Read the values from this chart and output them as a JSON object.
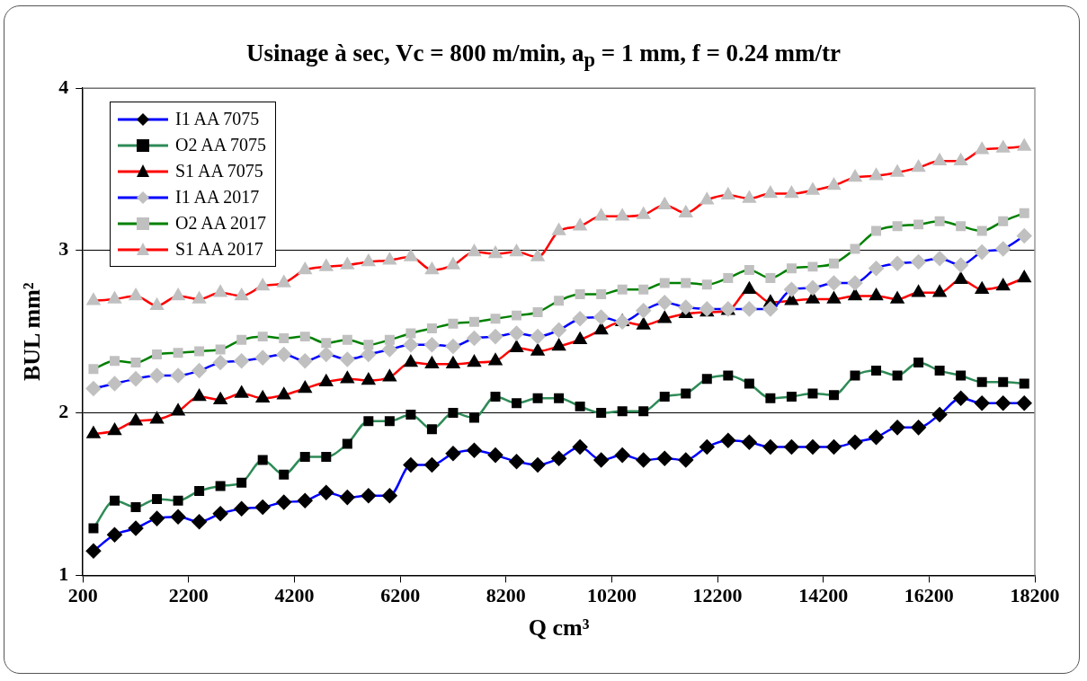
{
  "chart_data": {
    "type": "line",
    "title": "Usinage à sec, Vc = 800 m/min, a$_{p}$ = 1 mm, f = 0.24 mm/tr",
    "xlabel": "Q cm³",
    "ylabel": "BUL mm²",
    "x": [
      400,
      800,
      1200,
      1600,
      2000,
      2400,
      2800,
      3200,
      3600,
      4000,
      4400,
      4800,
      5200,
      5600,
      6000,
      6400,
      6800,
      7200,
      7600,
      8000,
      8400,
      8800,
      9200,
      9600,
      10000,
      10400,
      10800,
      11200,
      11600,
      12000,
      12400,
      12800,
      13200,
      13600,
      14000,
      14400,
      14800,
      15200,
      15600,
      16000,
      16400,
      16800,
      17200,
      17600,
      18000
    ],
    "series": [
      {
        "name": "I1 AA 7075",
        "color": "#0000ff",
        "marker": "diamond",
        "colors": [
          "#000000",
          "#000000",
          "#000000",
          "#000000",
          "#000000",
          "#000000",
          "#000000",
          "#000000",
          "#000000",
          "#000000",
          "#000000",
          "#000000",
          "#000000",
          "#000000",
          "#000000",
          "#000000",
          "#000000",
          "#000000",
          "#000000",
          "#000000",
          "#000000",
          "#000000",
          "#000000",
          "#000000",
          "#000000",
          "#000000",
          "#000000",
          "#000000",
          "#000000",
          "#000000",
          "#000000",
          "#000000",
          "#000000",
          "#000000",
          "#000000",
          "#000000",
          "#000000",
          "#000000",
          "#000000",
          "#000000",
          "#000000",
          "#000000",
          "#000000",
          "#000000",
          "#000000"
        ],
        "values": [
          1.15,
          1.25,
          1.29,
          1.35,
          1.36,
          1.33,
          1.38,
          1.41,
          1.42,
          1.45,
          1.46,
          1.51,
          1.48,
          1.49,
          1.49,
          1.68,
          1.68,
          1.75,
          1.77,
          1.74,
          1.7,
          1.68,
          1.72,
          1.79,
          1.71,
          1.74,
          1.71,
          1.72,
          1.71,
          1.79,
          1.83,
          1.82,
          1.79,
          1.79,
          1.79,
          1.79,
          1.82,
          1.85,
          1.91,
          1.91,
          1.99,
          2.09,
          2.06,
          2.06,
          2.06
        ]
      },
      {
        "name": "O2 AA 7075",
        "color": "#2e8b57",
        "marker": "square",
        "colors": [
          "#000000",
          "#000000",
          "#000000",
          "#000000",
          "#000000",
          "#000000",
          "#000000",
          "#000000",
          "#000000",
          "#000000",
          "#000000",
          "#000000",
          "#000000",
          "#000000",
          "#000000",
          "#000000",
          "#000000",
          "#000000",
          "#000000",
          "#000000",
          "#000000",
          "#000000",
          "#000000",
          "#000000",
          "#000000",
          "#000000",
          "#000000",
          "#000000",
          "#000000",
          "#000000",
          "#000000",
          "#000000",
          "#000000",
          "#000000",
          "#000000",
          "#000000",
          "#000000",
          "#000000",
          "#000000",
          "#000000",
          "#000000",
          "#000000",
          "#000000",
          "#000000",
          "#000000"
        ],
        "values": [
          1.29,
          1.46,
          1.42,
          1.47,
          1.46,
          1.52,
          1.55,
          1.57,
          1.71,
          1.62,
          1.73,
          1.73,
          1.81,
          1.95,
          1.95,
          1.99,
          1.9,
          2.0,
          1.97,
          2.1,
          2.06,
          2.09,
          2.09,
          2.04,
          2.0,
          2.01,
          2.01,
          2.1,
          2.12,
          2.21,
          2.23,
          2.18,
          2.09,
          2.1,
          2.12,
          2.11,
          2.23,
          2.26,
          2.23,
          2.31,
          2.26,
          2.23,
          2.19,
          2.19,
          2.18
        ]
      },
      {
        "name": "S1 AA 7075",
        "color": "#ff0000",
        "marker": "triangle",
        "colors": [
          "#000000",
          "#000000",
          "#000000",
          "#000000",
          "#000000",
          "#000000",
          "#000000",
          "#000000",
          "#000000",
          "#000000",
          "#000000",
          "#000000",
          "#000000",
          "#000000",
          "#000000",
          "#000000",
          "#000000",
          "#000000",
          "#000000",
          "#000000",
          "#000000",
          "#000000",
          "#000000",
          "#000000",
          "#000000",
          "#000000",
          "#000000",
          "#000000",
          "#000000",
          "#000000",
          "#000000",
          "#000000",
          "#000000",
          "#000000",
          "#000000",
          "#000000",
          "#000000",
          "#000000",
          "#000000",
          "#000000",
          "#000000",
          "#000000",
          "#000000",
          "#000000",
          "#000000"
        ],
        "values": [
          1.87,
          1.89,
          1.95,
          1.96,
          2.01,
          2.1,
          2.08,
          2.12,
          2.09,
          2.11,
          2.15,
          2.19,
          2.21,
          2.2,
          2.22,
          2.31,
          2.3,
          2.3,
          2.31,
          2.32,
          2.4,
          2.38,
          2.41,
          2.45,
          2.51,
          2.56,
          2.54,
          2.58,
          2.61,
          2.62,
          2.63,
          2.76,
          2.68,
          2.69,
          2.7,
          2.7,
          2.72,
          2.72,
          2.7,
          2.74,
          2.74,
          2.82,
          2.76,
          2.78,
          2.83
        ]
      },
      {
        "name": "I1 AA 2017",
        "color": "#0000ff",
        "marker": "diamond",
        "colors": [
          "#c0c0c0",
          "#c0c0c0",
          "#c0c0c0",
          "#c0c0c0",
          "#c0c0c0",
          "#c0c0c0",
          "#c0c0c0",
          "#c0c0c0",
          "#c0c0c0",
          "#c0c0c0",
          "#c0c0c0",
          "#c0c0c0",
          "#c0c0c0",
          "#c0c0c0",
          "#c0c0c0",
          "#c0c0c0",
          "#c0c0c0",
          "#c0c0c0",
          "#c0c0c0",
          "#c0c0c0",
          "#c0c0c0",
          "#c0c0c0",
          "#c0c0c0",
          "#c0c0c0",
          "#c0c0c0",
          "#c0c0c0",
          "#c0c0c0",
          "#c0c0c0",
          "#c0c0c0",
          "#c0c0c0",
          "#c0c0c0",
          "#c0c0c0",
          "#c0c0c0",
          "#c0c0c0",
          "#c0c0c0",
          "#c0c0c0",
          "#c0c0c0",
          "#c0c0c0",
          "#c0c0c0",
          "#c0c0c0",
          "#c0c0c0",
          "#c0c0c0",
          "#c0c0c0",
          "#c0c0c0",
          "#c0c0c0"
        ],
        "values": [
          2.15,
          2.18,
          2.21,
          2.23,
          2.23,
          2.26,
          2.31,
          2.32,
          2.34,
          2.36,
          2.32,
          2.36,
          2.33,
          2.36,
          2.39,
          2.42,
          2.42,
          2.41,
          2.46,
          2.47,
          2.49,
          2.47,
          2.51,
          2.58,
          2.59,
          2.56,
          2.63,
          2.68,
          2.65,
          2.64,
          2.64,
          2.64,
          2.64,
          2.76,
          2.77,
          2.8,
          2.8,
          2.89,
          2.92,
          2.93,
          2.95,
          2.91,
          2.99,
          3.01,
          3.09
        ]
      },
      {
        "name": "O2 AA 2017",
        "color": "#008000",
        "marker": "square",
        "colors": [
          "#c0c0c0",
          "#c0c0c0",
          "#c0c0c0",
          "#c0c0c0",
          "#c0c0c0",
          "#c0c0c0",
          "#c0c0c0",
          "#c0c0c0",
          "#c0c0c0",
          "#c0c0c0",
          "#c0c0c0",
          "#c0c0c0",
          "#c0c0c0",
          "#c0c0c0",
          "#c0c0c0",
          "#c0c0c0",
          "#c0c0c0",
          "#c0c0c0",
          "#c0c0c0",
          "#c0c0c0",
          "#c0c0c0",
          "#c0c0c0",
          "#c0c0c0",
          "#c0c0c0",
          "#c0c0c0",
          "#c0c0c0",
          "#c0c0c0",
          "#c0c0c0",
          "#c0c0c0",
          "#c0c0c0",
          "#c0c0c0",
          "#c0c0c0",
          "#c0c0c0",
          "#c0c0c0",
          "#c0c0c0",
          "#c0c0c0",
          "#c0c0c0",
          "#c0c0c0",
          "#c0c0c0",
          "#c0c0c0",
          "#c0c0c0",
          "#c0c0c0",
          "#c0c0c0",
          "#c0c0c0",
          "#c0c0c0"
        ],
        "values": [
          2.27,
          2.32,
          2.31,
          2.36,
          2.37,
          2.38,
          2.39,
          2.45,
          2.47,
          2.46,
          2.47,
          2.43,
          2.45,
          2.42,
          2.45,
          2.49,
          2.52,
          2.55,
          2.56,
          2.58,
          2.6,
          2.62,
          2.69,
          2.73,
          2.73,
          2.76,
          2.76,
          2.8,
          2.8,
          2.79,
          2.83,
          2.88,
          2.83,
          2.89,
          2.9,
          2.92,
          3.01,
          3.12,
          3.15,
          3.16,
          3.18,
          3.15,
          3.12,
          3.18,
          3.23
        ]
      },
      {
        "name": "S1 AA 2017",
        "color": "#ff0000",
        "marker": "triangle",
        "colors": [
          "#c0c0c0",
          "#c0c0c0",
          "#c0c0c0",
          "#c0c0c0",
          "#c0c0c0",
          "#c0c0c0",
          "#c0c0c0",
          "#c0c0c0",
          "#c0c0c0",
          "#c0c0c0",
          "#c0c0c0",
          "#c0c0c0",
          "#c0c0c0",
          "#c0c0c0",
          "#c0c0c0",
          "#c0c0c0",
          "#c0c0c0",
          "#c0c0c0",
          "#c0c0c0",
          "#c0c0c0",
          "#c0c0c0",
          "#c0c0c0",
          "#c0c0c0",
          "#c0c0c0",
          "#c0c0c0",
          "#c0c0c0",
          "#c0c0c0",
          "#c0c0c0",
          "#c0c0c0",
          "#c0c0c0",
          "#c0c0c0",
          "#c0c0c0",
          "#c0c0c0",
          "#c0c0c0",
          "#c0c0c0",
          "#c0c0c0",
          "#c0c0c0",
          "#c0c0c0",
          "#c0c0c0",
          "#c0c0c0",
          "#c0c0c0",
          "#c0c0c0",
          "#c0c0c0",
          "#c0c0c0",
          "#c0c0c0"
        ],
        "values": [
          2.69,
          2.7,
          2.72,
          2.66,
          2.72,
          2.7,
          2.74,
          2.72,
          2.78,
          2.8,
          2.88,
          2.9,
          2.91,
          2.93,
          2.94,
          2.96,
          2.88,
          2.91,
          2.99,
          2.98,
          2.99,
          2.96,
          3.12,
          3.15,
          3.21,
          3.21,
          3.22,
          3.28,
          3.23,
          3.31,
          3.34,
          3.32,
          3.35,
          3.35,
          3.37,
          3.4,
          3.45,
          3.46,
          3.48,
          3.51,
          3.55,
          3.55,
          3.62,
          3.63,
          3.64
        ]
      }
    ],
    "xlim": [
      200,
      18200
    ],
    "xticks": [
      200,
      2200,
      4200,
      6200,
      8200,
      10200,
      12200,
      14200,
      16200,
      18200
    ],
    "ylim": [
      1,
      4
    ],
    "yticks": [
      1,
      2,
      3,
      4
    ],
    "grid": "y",
    "legend": "top left"
  }
}
